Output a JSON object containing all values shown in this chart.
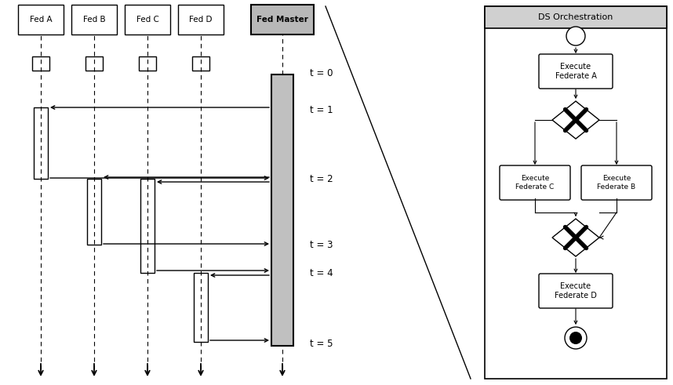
{
  "fig_width": 8.58,
  "fig_height": 4.91,
  "dpi": 100,
  "bg_color": "#ffffff",
  "federates": [
    "Fed A",
    "Fed B",
    "Fed C",
    "Fed D",
    "Fed Master"
  ],
  "right_panel_title": "DS Orchestration",
  "time_labels": [
    "t = 0",
    "t = 1",
    "t = 2",
    "t = 3",
    "t = 4",
    "t = 5"
  ]
}
